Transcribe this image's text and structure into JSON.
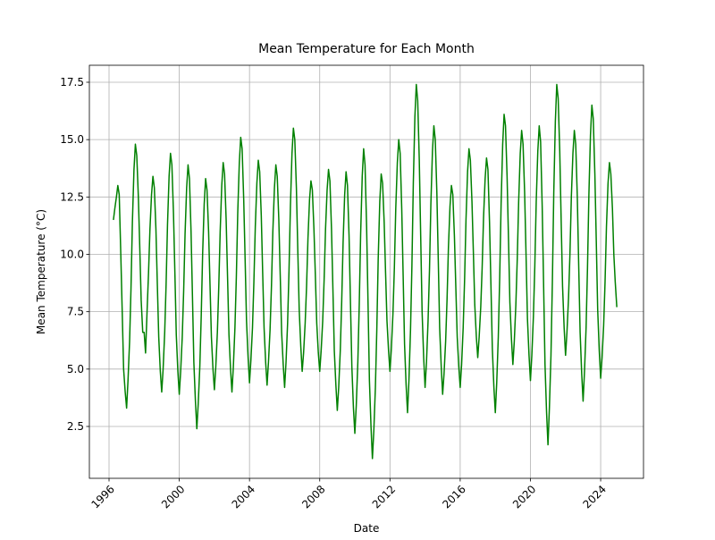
{
  "chart_data": {
    "type": "line",
    "title": "Mean Temperature for Each Month",
    "xlabel": "Date",
    "ylabel": "Mean Temperature (°C)",
    "color": "#008000",
    "grid": true,
    "xlim": [
      1994.88,
      2026.44
    ],
    "ylim": [
      0.24,
      18.24
    ],
    "xticks": [
      1996,
      2000,
      2004,
      2008,
      2012,
      2016,
      2020,
      2024
    ],
    "yticks": [
      2.5,
      {
        "value": 5,
        "label": "5.0"
      },
      7.5,
      {
        "value": 10,
        "label": "10.0"
      },
      12.5,
      {
        "value": 15,
        "label": "15.0"
      },
      17.5
    ],
    "x": [
      1996.25,
      1996.33,
      1996.42,
      1996.5,
      1996.58,
      1996.67,
      1996.75,
      1996.83,
      1996.92,
      1997,
      1997.08,
      1997.17,
      1997.25,
      1997.33,
      1997.42,
      1997.5,
      1997.58,
      1997.67,
      1997.75,
      1997.83,
      1997.92,
      1998,
      1998.08,
      1998.17,
      1998.25,
      1998.33,
      1998.42,
      1998.5,
      1998.58,
      1998.67,
      1998.75,
      1998.83,
      1998.92,
      1999,
      1999.08,
      1999.17,
      1999.25,
      1999.33,
      1999.42,
      1999.5,
      1999.58,
      1999.67,
      1999.75,
      1999.83,
      1999.92,
      2000,
      2000.08,
      2000.17,
      2000.25,
      2000.33,
      2000.42,
      2000.5,
      2000.58,
      2000.67,
      2000.75,
      2000.83,
      2000.92,
      2001,
      2001.08,
      2001.17,
      2001.25,
      2001.33,
      2001.42,
      2001.5,
      2001.58,
      2001.67,
      2001.75,
      2001.83,
      2001.92,
      2002,
      2002.08,
      2002.17,
      2002.25,
      2002.33,
      2002.42,
      2002.5,
      2002.58,
      2002.67,
      2002.75,
      2002.83,
      2002.92,
      2003,
      2003.08,
      2003.17,
      2003.25,
      2003.33,
      2003.42,
      2003.5,
      2003.58,
      2003.67,
      2003.75,
      2003.83,
      2003.92,
      2004,
      2004.08,
      2004.17,
      2004.25,
      2004.33,
      2004.42,
      2004.5,
      2004.58,
      2004.67,
      2004.75,
      2004.83,
      2004.92,
      2005,
      2005.08,
      2005.17,
      2005.25,
      2005.33,
      2005.42,
      2005.5,
      2005.58,
      2005.67,
      2005.75,
      2005.83,
      2005.92,
      2006,
      2006.08,
      2006.17,
      2006.25,
      2006.33,
      2006.42,
      2006.5,
      2006.58,
      2006.67,
      2006.75,
      2006.83,
      2006.92,
      2007,
      2007.08,
      2007.17,
      2007.25,
      2007.33,
      2007.42,
      2007.5,
      2007.58,
      2007.67,
      2007.75,
      2007.83,
      2007.92,
      2008,
      2008.08,
      2008.17,
      2008.25,
      2008.33,
      2008.42,
      2008.5,
      2008.58,
      2008.67,
      2008.75,
      2008.83,
      2008.92,
      2009,
      2009.08,
      2009.17,
      2009.25,
      2009.33,
      2009.42,
      2009.5,
      2009.58,
      2009.67,
      2009.75,
      2009.83,
      2009.92,
      2010,
      2010.08,
      2010.17,
      2010.25,
      2010.33,
      2010.42,
      2010.5,
      2010.58,
      2010.67,
      2010.75,
      2010.83,
      2010.92,
      2011,
      2011.08,
      2011.17,
      2011.25,
      2011.33,
      2011.42,
      2011.5,
      2011.58,
      2011.67,
      2011.75,
      2011.83,
      2011.92,
      2012,
      2012.08,
      2012.17,
      2012.25,
      2012.33,
      2012.42,
      2012.5,
      2012.58,
      2012.67,
      2012.75,
      2012.83,
      2012.92,
      2013,
      2013.08,
      2013.17,
      2013.25,
      2013.33,
      2013.42,
      2013.5,
      2013.58,
      2013.67,
      2013.75,
      2013.83,
      2013.92,
      2014,
      2014.08,
      2014.17,
      2014.25,
      2014.33,
      2014.42,
      2014.5,
      2014.58,
      2014.67,
      2014.75,
      2014.83,
      2014.92,
      2015,
      2015.08,
      2015.17,
      2015.25,
      2015.33,
      2015.42,
      2015.5,
      2015.58,
      2015.67,
      2015.75,
      2015.83,
      2015.92,
      2016,
      2016.08,
      2016.17,
      2016.25,
      2016.33,
      2016.42,
      2016.5,
      2016.58,
      2016.67,
      2016.75,
      2016.83,
      2016.92,
      2017,
      2017.08,
      2017.17,
      2017.25,
      2017.33,
      2017.42,
      2017.5,
      2017.58,
      2017.67,
      2017.75,
      2017.83,
      2017.92,
      2018,
      2018.08,
      2018.17,
      2018.25,
      2018.33,
      2018.42,
      2018.5,
      2018.58,
      2018.67,
      2018.75,
      2018.83,
      2018.92,
      2019,
      2019.08,
      2019.17,
      2019.25,
      2019.33,
      2019.42,
      2019.5,
      2019.58,
      2019.67,
      2019.75,
      2019.83,
      2019.92,
      2020,
      2020.08,
      2020.17,
      2020.25,
      2020.33,
      2020.42,
      2020.5,
      2020.58,
      2020.67,
      2020.75,
      2020.83,
      2020.92,
      2021,
      2021.08,
      2021.17,
      2021.25,
      2021.33,
      2021.42,
      2021.5,
      2021.58,
      2021.67,
      2021.75,
      2021.83,
      2021.92,
      2022,
      2022.08,
      2022.17,
      2022.25,
      2022.33,
      2022.42,
      2022.5,
      2022.58,
      2022.67,
      2022.75,
      2022.83,
      2022.92,
      2023,
      2023.08,
      2023.17,
      2023.25,
      2023.33,
      2023.42,
      2023.5,
      2023.58,
      2023.67,
      2023.75,
      2023.83,
      2023.92,
      2024,
      2024.08,
      2024.17,
      2024.25,
      2024.33,
      2024.42,
      2024.5,
      2024.58,
      2024.67,
      2024.75,
      2024.83,
      2024.92
    ],
    "values": [
      11.5,
      12.0,
      12.5,
      13.0,
      12.6,
      10.0,
      7.5,
      5.0,
      4.0,
      3.3,
      4.5,
      6.2,
      8.5,
      11.4,
      13.7,
      14.8,
      14.3,
      12.5,
      10.3,
      8.0,
      6.6,
      6.6,
      5.7,
      7.6,
      9.2,
      11.1,
      12.6,
      13.4,
      12.9,
      11.1,
      8.7,
      6.4,
      4.9,
      4.0,
      5.0,
      6.6,
      8.7,
      11.3,
      13.4,
      14.4,
      13.9,
      11.8,
      9.2,
      6.5,
      4.9,
      3.9,
      4.9,
      6.4,
      8.4,
      10.9,
      12.9,
      13.9,
      13.3,
      11.0,
      8.2,
      5.3,
      3.6,
      2.4,
      3.5,
      5.1,
      7.3,
      10.0,
      12.2,
      13.3,
      12.8,
      11.0,
      8.7,
      6.4,
      5.0,
      4.1,
      5.1,
      6.6,
      8.6,
      11.0,
      13.0,
      14.0,
      13.5,
      11.5,
      9.0,
      6.5,
      5.0,
      4.0,
      5.1,
      6.8,
      9.0,
      11.8,
      14.0,
      15.1,
      14.6,
      12.4,
      9.8,
      7.1,
      5.5,
      4.4,
      5.4,
      6.8,
      8.8,
      11.2,
      13.1,
      14.1,
      13.6,
      11.7,
      9.2,
      6.8,
      5.3,
      4.3,
      5.3,
      6.7,
      8.6,
      11.0,
      12.9,
      13.9,
      13.4,
      11.5,
      9.1,
      6.6,
      5.2,
      4.2,
      5.3,
      7.0,
      9.3,
      12.1,
      14.4,
      15.5,
      15.0,
      12.9,
      10.2,
      7.6,
      6.0,
      4.9,
      5.7,
      7.0,
      8.6,
      10.7,
      12.4,
      13.2,
      12.8,
      11.1,
      9.1,
      7.0,
      5.7,
      4.9,
      5.8,
      7.1,
      8.9,
      11.1,
      12.8,
      13.7,
      13.2,
      11.1,
      8.5,
      5.8,
      4.3,
      3.2,
      4.2,
      5.8,
      7.9,
      10.5,
      12.6,
      13.6,
      13.0,
      10.8,
      7.9,
      5.1,
      3.3,
      2.2,
      3.4,
      5.3,
      7.8,
      10.9,
      13.4,
      14.6,
      13.9,
      11.2,
      7.9,
      4.5,
      2.5,
      1.1,
      2.3,
      4.2,
      6.7,
      9.8,
      12.3,
      13.5,
      13.1,
      11.4,
      9.2,
      7.1,
      5.8,
      4.9,
      5.9,
      7.4,
      9.4,
      12.0,
      14.0,
      15.0,
      14.4,
      12.0,
      9.1,
      6.1,
      4.3,
      3.1,
      4.5,
      6.7,
      9.5,
      13.1,
      16.0,
      17.4,
      16.7,
      14.1,
      10.8,
      7.5,
      5.5,
      4.2,
      5.3,
      7.1,
      9.3,
      12.2,
      14.5,
      15.6,
      15.0,
      12.7,
      9.8,
      6.8,
      5.1,
      3.9,
      4.8,
      6.2,
      8.0,
      10.3,
      12.1,
      13.0,
      12.6,
      10.8,
      8.6,
      6.4,
      5.1,
      4.2,
      5.2,
      6.8,
      8.9,
      11.5,
      13.6,
      14.6,
      14.1,
      12.3,
      10.1,
      7.8,
      6.4,
      5.5,
      6.4,
      7.7,
      9.4,
      11.6,
      13.3,
      14.2,
      13.7,
      11.4,
      8.7,
      5.9,
      4.2,
      3.1,
      4.4,
      6.4,
      9.0,
      12.2,
      14.8,
      16.1,
      15.6,
      13.4,
      10.7,
      7.9,
      6.3,
      5.2,
      6.2,
      7.8,
      9.8,
      12.3,
      14.4,
      15.4,
      14.8,
      12.7,
      10.0,
      7.2,
      5.6,
      4.5,
      5.6,
      7.3,
      9.5,
      12.3,
      14.5,
      15.6,
      14.9,
      12.1,
      8.7,
      5.2,
      3.1,
      1.7,
      3.3,
      5.6,
      8.8,
      12.7,
      15.8,
      17.4,
      16.8,
      14.5,
      11.5,
      8.6,
      6.8,
      5.6,
      6.6,
      8.1,
      10.0,
      12.5,
      14.4,
      15.4,
      14.8,
      12.5,
      9.5,
      6.6,
      4.8,
      3.6,
      4.9,
      6.8,
      9.4,
      12.6,
      15.2,
      16.5,
      15.9,
      13.5,
      10.6,
      7.6,
      5.8,
      4.6,
      5.5,
      6.9,
      8.8,
      11.2,
      13.1,
      14.0,
      13.5,
      12.0,
      10.0,
      8.8,
      7.7
    ]
  }
}
